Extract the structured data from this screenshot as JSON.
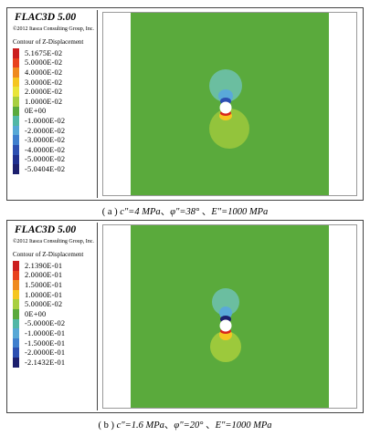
{
  "panels": [
    {
      "software": "FLAC3D 5.00",
      "copyright": "©2012 Itasca Consulting Group, Inc.",
      "contour_title": "Contour of Z-Displacement",
      "legend": [
        {
          "label": "5.1675E-02",
          "color": "#cc1f1f"
        },
        {
          "label": "5.0000E-02",
          "color": "#e8421d"
        },
        {
          "label": "4.0000E-02",
          "color": "#ef8a1e"
        },
        {
          "label": "3.0000E-02",
          "color": "#f5c621"
        },
        {
          "label": "2.0000E-02",
          "color": "#e9e53a"
        },
        {
          "label": "1.0000E-02",
          "color": "#a8cf3f"
        },
        {
          "label": "0E+00",
          "color": "#5aaa3c"
        },
        {
          "label": "-1.0000E-02",
          "color": "#52b7a6"
        },
        {
          "label": "-2.0000E-02",
          "color": "#57a8d6"
        },
        {
          "label": "-3.0000E-02",
          "color": "#3f7fce"
        },
        {
          "label": "-4.0000E-02",
          "color": "#2c4fb1"
        },
        {
          "label": "-5.0000E-02",
          "color": "#1f2f8f"
        },
        {
          "label": "-5.0404E-02",
          "color": "#1c1f6e"
        }
      ],
      "caption": {
        "prefix": "( a )",
        "c": "c\"=4 MPa",
        "sep1": "、",
        "phi": "φ\"=38°",
        "sep2": " 、",
        "E": "E\"=1000 MPa"
      }
    },
    {
      "software": "FLAC3D 5.00",
      "copyright": "©2012 Itasca Consulting Group, Inc.",
      "contour_title": "Contour of Z-Displacement",
      "legend": [
        {
          "label": "2.1390E-01",
          "color": "#cc1f1f"
        },
        {
          "label": "2.0000E-01",
          "color": "#e8421d"
        },
        {
          "label": "1.5000E-01",
          "color": "#ef8a1e"
        },
        {
          "label": "1.0000E-01",
          "color": "#f5c621"
        },
        {
          "label": "5.0000E-02",
          "color": "#a8cf3f"
        },
        {
          "label": "0E+00",
          "color": "#5aaa3c"
        },
        {
          "label": "-5.0000E-02",
          "color": "#52b7a6"
        },
        {
          "label": "-1.0000E-01",
          "color": "#57a8d6"
        },
        {
          "label": "-1.5000E-01",
          "color": "#3f7fce"
        },
        {
          "label": "-2.0000E-01",
          "color": "#2c4fb1"
        },
        {
          "label": "-2.1432E-01",
          "color": "#1c1f6e"
        }
      ],
      "caption": {
        "prefix": "( b )",
        "c": "c\"=1.6 MPa",
        "sep1": "、",
        "phi": "φ\"=20°",
        "sep2": " 、",
        "E": "E\"=1000 MPa"
      }
    }
  ]
}
